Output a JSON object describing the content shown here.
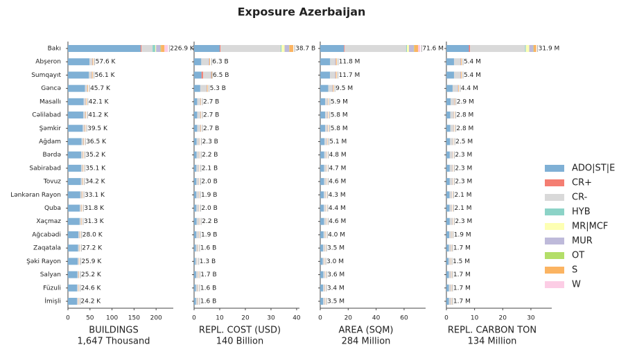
{
  "chart_data": {
    "type": "stacked_barh",
    "title": "Exposure Azerbaijan",
    "categories": [
      "Bakı",
      "Abşeron",
      "Sumqayıt",
      "Gəncə",
      "Masallı",
      "Cəlilabad",
      "Şəmkir",
      "Ağdam",
      "Bərdə",
      "Sabirabad",
      "Tovuz",
      "Lənkəran Rayon",
      "Quba",
      "Xaçmaz",
      "Ağcabədi",
      "Zaqatala",
      "Şəki Rayon",
      "Salyan",
      "Füzuli",
      "İmişli"
    ],
    "series": [
      {
        "name": "ADO|ST|E",
        "color": "#7fb0d5"
      },
      {
        "name": "CR+",
        "color": "#f47e72"
      },
      {
        "name": "CR-",
        "color": "#d9d9d9"
      },
      {
        "name": "HYB",
        "color": "#8cd3c7"
      },
      {
        "name": "MR|MCF",
        "color": "#fdffb3"
      },
      {
        "name": "MUR",
        "color": "#bebada"
      },
      {
        "name": "OT",
        "color": "#b3de69"
      },
      {
        "name": "S",
        "color": "#fbb462"
      },
      {
        "name": "W",
        "color": "#fccde5"
      }
    ],
    "panels": [
      {
        "xlabel": "BUILDINGS",
        "xlabel_total": "1,647 Thousand",
        "xlim": [
          0,
          239
        ],
        "xticks": [
          0,
          50,
          100,
          150,
          200
        ],
        "totals": [
          226.9,
          57.6,
          56.1,
          45.7,
          42.1,
          41.2,
          39.5,
          36.5,
          35.2,
          35.1,
          34.2,
          33.1,
          31.8,
          31.3,
          28.0,
          27.2,
          25.9,
          25.2,
          24.6,
          24.2
        ],
        "total_labels": [
          "226.9 K",
          "57.6 K",
          "56.1 K",
          "45.7 K",
          "42.1 K",
          "41.2 K",
          "39.5 K",
          "36.5 K",
          "35.2 K",
          "35.1 K",
          "34.2 K",
          "33.1 K",
          "31.8 K",
          "31.3 K",
          "28.0 K",
          "27.2 K",
          "25.9 K",
          "25.2 K",
          "24.6 K",
          "24.2 K"
        ],
        "values": [
          [
            165,
            48.9,
            47.7,
            38.8,
            35.8,
            35.0,
            33.6,
            31.0,
            29.9,
            29.8,
            29.1,
            28.1,
            27.0,
            26.6,
            23.8,
            23.1,
            22.0,
            21.4,
            20.9,
            20.6
          ],
          [
            2,
            0,
            0,
            0,
            0,
            0,
            0,
            0,
            0,
            0,
            0,
            0,
            0,
            0,
            0,
            0,
            0,
            0,
            0,
            0
          ],
          [
            25,
            5.8,
            5.6,
            4.6,
            4.2,
            4.1,
            4.0,
            3.7,
            3.5,
            3.5,
            3.4,
            3.3,
            3.2,
            3.1,
            2.8,
            2.7,
            2.6,
            2.5,
            2.5,
            2.4
          ],
          [
            6,
            0,
            0,
            0,
            0,
            0,
            0,
            0,
            0,
            0,
            0,
            0,
            0,
            0,
            0,
            0,
            0,
            0,
            0,
            0
          ],
          [
            2,
            0,
            0,
            0,
            0,
            0,
            0,
            0,
            0,
            0,
            0,
            0,
            0,
            0,
            0,
            0,
            0,
            0,
            0,
            0
          ],
          [
            10,
            1.2,
            1.1,
            0.9,
            0.8,
            0.8,
            0.8,
            0.7,
            0.7,
            0.7,
            0.7,
            0.7,
            0.6,
            0.6,
            0.6,
            0.5,
            0.5,
            0.5,
            0.5,
            0.5
          ],
          [
            1,
            0,
            0,
            0,
            0,
            0,
            0,
            0,
            0,
            0,
            0,
            0,
            0,
            0,
            0,
            0,
            0,
            0,
            0,
            0
          ],
          [
            8,
            1.7,
            1.7,
            1.4,
            1.3,
            1.2,
            1.2,
            1.1,
            1.1,
            1.1,
            1.0,
            1.0,
            1.0,
            0.9,
            0.8,
            0.8,
            0.8,
            0.8,
            0.7,
            0.7
          ],
          [
            7.9,
            0,
            0,
            0,
            0,
            0,
            0,
            0,
            0,
            0,
            0,
            0,
            0,
            0,
            0,
            0,
            0,
            0,
            0,
            0
          ]
        ]
      },
      {
        "xlabel": "REPL. COST (USD)",
        "xlabel_total": "140 Billion",
        "xlim": [
          0,
          41.1
        ],
        "xticks": [
          0,
          10,
          20,
          30,
          40
        ],
        "totals": [
          38.7,
          6.3,
          6.5,
          5.3,
          2.7,
          2.7,
          2.7,
          2.3,
          2.2,
          2.1,
          2.0,
          1.9,
          2.0,
          2.2,
          1.9,
          1.6,
          1.3,
          1.7,
          1.6,
          1.6
        ],
        "total_labels": [
          "38.7 B",
          "6.3 B",
          "6.5 B",
          "5.3 B",
          "2.7 B",
          "2.7 B",
          "2.7 B",
          "2.3 B",
          "2.2 B",
          "2.1 B",
          "2.0 B",
          "1.9 B",
          "2.0 B",
          "2.2 B",
          "1.9 B",
          "1.6 B",
          "1.3 B",
          "1.7 B",
          "1.6 B",
          "1.6 B"
        ],
        "values": [
          [
            10,
            2.8,
            2.9,
            2.4,
            1.2,
            1.2,
            1.2,
            1.0,
            1.0,
            0.9,
            0.9,
            0.9,
            0.9,
            1.0,
            0.9,
            0.7,
            0.6,
            0.8,
            0.7,
            0.7
          ],
          [
            0.3,
            0,
            0.6,
            0,
            0,
            0,
            0,
            0,
            0,
            0,
            0,
            0,
            0,
            0,
            0,
            0,
            0,
            0,
            0,
            0
          ],
          [
            23.5,
            2.8,
            2.9,
            2.4,
            1.2,
            1.2,
            1.2,
            1.0,
            1.0,
            0.9,
            0.9,
            0.9,
            0.9,
            1.0,
            0.9,
            0.7,
            0.6,
            0.8,
            0.7,
            0.7
          ],
          [
            0.3,
            0,
            0,
            0,
            0,
            0,
            0,
            0,
            0,
            0,
            0,
            0,
            0,
            0,
            0,
            0,
            0,
            0,
            0,
            0
          ],
          [
            1.2,
            0,
            0,
            0,
            0,
            0,
            0,
            0,
            0,
            0,
            0,
            0,
            0,
            0,
            0,
            0,
            0,
            0,
            0,
            0
          ],
          [
            1.8,
            0.3,
            0.3,
            0.2,
            0.15,
            0.15,
            0.15,
            0.1,
            0.1,
            0.1,
            0.1,
            0.1,
            0.1,
            0.1,
            0.1,
            0.1,
            0.05,
            0.1,
            0.1,
            0.1
          ],
          [
            0.1,
            0,
            0,
            0,
            0,
            0,
            0,
            0,
            0,
            0,
            0,
            0,
            0,
            0,
            0,
            0,
            0,
            0,
            0,
            0
          ],
          [
            1.5,
            0.3,
            0.3,
            0.3,
            0.15,
            0.15,
            0.15,
            0.1,
            0.1,
            0.1,
            0.1,
            0.1,
            0.1,
            0.1,
            0.1,
            0.1,
            0.05,
            0.1,
            0.1,
            0.1
          ],
          [
            0,
            0,
            0,
            0,
            0,
            0,
            0,
            0,
            0,
            0,
            0,
            0,
            0,
            0,
            0,
            0,
            0,
            0,
            0,
            0
          ]
        ]
      },
      {
        "xlabel": "AREA (SQM)",
        "xlabel_total": "284 Million",
        "xlim": [
          0,
          75.4
        ],
        "xticks": [
          0,
          20,
          40,
          60
        ],
        "totals": [
          71.6,
          11.8,
          11.7,
          9.5,
          5.9,
          5.8,
          5.8,
          5.1,
          4.8,
          4.7,
          4.6,
          4.3,
          4.4,
          4.6,
          4.0,
          3.5,
          3.0,
          3.6,
          3.4,
          3.5
        ],
        "total_labels": [
          "71.6 M",
          "11.8 M",
          "11.7 M",
          "9.5 M",
          "5.9 M",
          "5.8 M",
          "5.8 M",
          "5.1 M",
          "4.8 M",
          "4.7 M",
          "4.6 M",
          "4.3 M",
          "4.4 M",
          "4.6 M",
          "4.0 M",
          "3.5 M",
          "3.0 M",
          "3.6 M",
          "3.4 M",
          "3.5 M"
        ],
        "values": [
          [
            17,
            7.1,
            7.0,
            5.7,
            3.5,
            3.5,
            3.5,
            3.1,
            2.9,
            2.8,
            2.8,
            2.6,
            2.6,
            2.8,
            2.4,
            2.1,
            1.8,
            2.2,
            2.0,
            2.1
          ],
          [
            0.5,
            0,
            0,
            0,
            0,
            0,
            0,
            0,
            0,
            0,
            0,
            0,
            0,
            0,
            0,
            0,
            0,
            0,
            0,
            0
          ],
          [
            44,
            3.5,
            3.5,
            2.9,
            1.8,
            1.7,
            1.7,
            1.5,
            1.4,
            1.4,
            1.4,
            1.3,
            1.3,
            1.4,
            1.2,
            1.1,
            0.9,
            1.1,
            1.0,
            1.1
          ],
          [
            0.5,
            0,
            0,
            0,
            0,
            0,
            0,
            0,
            0,
            0,
            0,
            0,
            0,
            0,
            0,
            0,
            0,
            0,
            0,
            0
          ],
          [
            1.5,
            0,
            0,
            0,
            0,
            0,
            0,
            0,
            0,
            0,
            0,
            0,
            0,
            0,
            0,
            0,
            0,
            0,
            0,
            0
          ],
          [
            3.5,
            0.6,
            0.6,
            0.5,
            0.3,
            0.3,
            0.3,
            0.3,
            0.2,
            0.2,
            0.2,
            0.2,
            0.2,
            0.2,
            0.2,
            0.2,
            0.2,
            0.2,
            0.2,
            0.2
          ],
          [
            0.3,
            0,
            0,
            0,
            0,
            0,
            0,
            0,
            0,
            0,
            0,
            0,
            0,
            0,
            0,
            0,
            0,
            0,
            0,
            0
          ],
          [
            2.8,
            0.6,
            0.6,
            0.5,
            0.3,
            0.3,
            0.3,
            0.3,
            0.2,
            0.2,
            0.2,
            0.2,
            0.2,
            0.2,
            0.2,
            0.2,
            0.2,
            0.2,
            0.2,
            0.2
          ],
          [
            1.5,
            0,
            0,
            0,
            0,
            0,
            0,
            0,
            0,
            0,
            0,
            0,
            0,
            0,
            0,
            0,
            0,
            0,
            0,
            0
          ]
        ]
      },
      {
        "xlabel": "REPL. CARBON TON",
        "xlabel_total": "134 Million",
        "xlim": [
          0,
          37.4
        ],
        "xticks": [
          0,
          10,
          20,
          30
        ],
        "totals": [
          31.9,
          5.4,
          5.4,
          4.4,
          2.9,
          2.8,
          2.8,
          2.5,
          2.3,
          2.3,
          2.3,
          2.1,
          2.1,
          2.3,
          1.9,
          1.7,
          1.5,
          1.7,
          1.7,
          1.7
        ],
        "total_labels": [
          "31.9 M",
          "5.4 M",
          "5.4 M",
          "4.4 M",
          "2.9 M",
          "2.8 M",
          "2.8 M",
          "2.5 M",
          "2.3 M",
          "2.3 M",
          "2.3 M",
          "2.1 M",
          "2.1 M",
          "2.3 M",
          "1.9 M",
          "1.7 M",
          "1.5 M",
          "1.7 M",
          "1.7 M",
          "1.7 M"
        ],
        "values": [
          [
            8,
            2.7,
            2.7,
            2.2,
            1.5,
            1.4,
            1.4,
            1.3,
            1.2,
            1.2,
            1.2,
            1.1,
            1.1,
            1.2,
            1.0,
            0.9,
            0.8,
            0.9,
            0.9,
            0.9
          ],
          [
            0.4,
            0,
            0,
            0,
            0,
            0,
            0,
            0,
            0,
            0,
            0,
            0,
            0,
            0,
            0,
            0,
            0,
            0,
            0,
            0
          ],
          [
            19.5,
            2.2,
            2.2,
            1.8,
            1.2,
            1.1,
            1.1,
            1.0,
            0.9,
            0.9,
            0.9,
            0.8,
            0.8,
            0.9,
            0.8,
            0.7,
            0.6,
            0.7,
            0.7,
            0.7
          ],
          [
            0.3,
            0,
            0,
            0,
            0,
            0,
            0,
            0,
            0,
            0,
            0,
            0,
            0,
            0,
            0,
            0,
            0,
            0,
            0,
            0
          ],
          [
            1.2,
            0,
            0,
            0,
            0,
            0,
            0,
            0,
            0,
            0,
            0,
            0,
            0,
            0,
            0,
            0,
            0,
            0,
            0,
            0
          ],
          [
            1.5,
            0.25,
            0.25,
            0.2,
            0.15,
            0.15,
            0.15,
            0.1,
            0.1,
            0.1,
            0.1,
            0.1,
            0.1,
            0.1,
            0.1,
            0.1,
            0.1,
            0.1,
            0.1,
            0.1
          ],
          [
            0.1,
            0,
            0,
            0,
            0,
            0,
            0,
            0,
            0,
            0,
            0,
            0,
            0,
            0,
            0,
            0,
            0,
            0,
            0,
            0
          ],
          [
            0.9,
            0.25,
            0.25,
            0.2,
            0.15,
            0.15,
            0.15,
            0.1,
            0.1,
            0.1,
            0.1,
            0.1,
            0.1,
            0.1,
            0.1,
            0.1,
            0.1,
            0.1,
            0.1,
            0.1
          ],
          [
            0,
            0,
            0,
            0,
            0,
            0,
            0,
            0,
            0,
            0,
            0,
            0,
            0,
            0,
            0,
            0,
            0,
            0,
            0,
            0
          ]
        ]
      }
    ]
  }
}
